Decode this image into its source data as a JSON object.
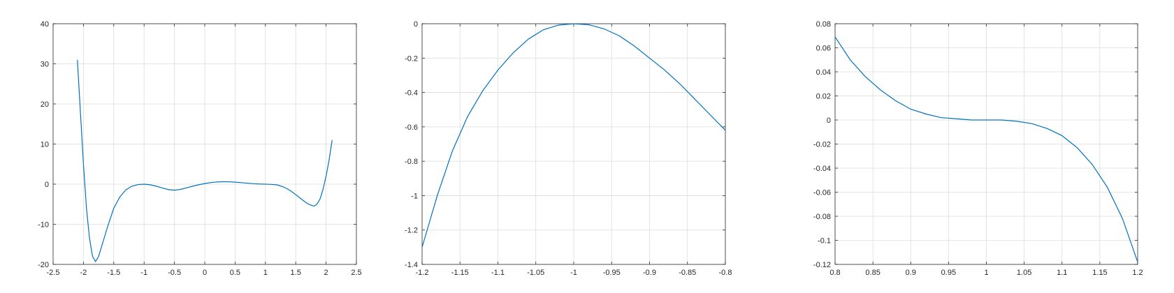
{
  "chart_data": [
    {
      "type": "line",
      "title": "",
      "xlabel": "",
      "ylabel": "",
      "xlim": [
        -2.5,
        2.5
      ],
      "ylim": [
        -20,
        40
      ],
      "grid": true,
      "xticks": [
        "-2.5",
        "-2",
        "-1.5",
        "-1",
        "-0.5",
        "0",
        "0.5",
        "1",
        "1.5",
        "2",
        "2.5"
      ],
      "yticks": [
        "-20",
        "-10",
        "0",
        "10",
        "20",
        "30",
        "40"
      ],
      "series": [
        {
          "color": "#0072bd",
          "x": [
            -2.1,
            -2.05,
            -2.0,
            -1.95,
            -1.9,
            -1.85,
            -1.8,
            -1.75,
            -1.7,
            -1.6,
            -1.5,
            -1.4,
            -1.3,
            -1.2,
            -1.1,
            -1.0,
            -0.9,
            -0.8,
            -0.7,
            -0.6,
            -0.5,
            -0.4,
            -0.3,
            -0.2,
            -0.1,
            0.0,
            0.1,
            0.2,
            0.3,
            0.4,
            0.5,
            0.6,
            0.7,
            0.8,
            0.9,
            1.0,
            1.1,
            1.2,
            1.3,
            1.4,
            1.5,
            1.6,
            1.7,
            1.75,
            1.8,
            1.85,
            1.9,
            1.95,
            2.0,
            2.05,
            2.1
          ],
          "y": [
            31.0,
            18.0,
            5.0,
            -6.0,
            -13.5,
            -18.0,
            -19.3,
            -18.0,
            -15.5,
            -10.5,
            -6.0,
            -3.2,
            -1.4,
            -0.5,
            -0.1,
            0.0,
            -0.15,
            -0.5,
            -0.95,
            -1.35,
            -1.5,
            -1.3,
            -0.9,
            -0.5,
            -0.15,
            0.15,
            0.4,
            0.55,
            0.62,
            0.6,
            0.5,
            0.38,
            0.25,
            0.12,
            0.04,
            0.0,
            -0.05,
            -0.2,
            -0.7,
            -1.5,
            -2.6,
            -3.8,
            -4.9,
            -5.2,
            -5.5,
            -5.0,
            -3.7,
            -1.3,
            2.0,
            6.0,
            11.0
          ]
        }
      ]
    },
    {
      "type": "line",
      "title": "",
      "xlabel": "",
      "ylabel": "",
      "xlim": [
        -1.2,
        -0.8
      ],
      "ylim": [
        -1.4,
        0
      ],
      "grid": true,
      "xticks": [
        "-1.2",
        "-1.15",
        "-1.1",
        "-1.05",
        "-1",
        "-0.95",
        "-0.9",
        "-0.85",
        "-0.8"
      ],
      "yticks": [
        "-1.4",
        "-1.2",
        "-1",
        "-0.8",
        "-0.6",
        "-0.4",
        "-0.2",
        "0"
      ],
      "series": [
        {
          "color": "#0072bd",
          "x": [
            -1.2,
            -1.18,
            -1.16,
            -1.14,
            -1.12,
            -1.1,
            -1.08,
            -1.06,
            -1.04,
            -1.02,
            -1.0,
            -0.98,
            -0.96,
            -0.94,
            -0.92,
            -0.9,
            -0.88,
            -0.86,
            -0.84,
            -0.82,
            -0.8
          ],
          "y": [
            -1.3,
            -1.0,
            -0.74,
            -0.54,
            -0.39,
            -0.27,
            -0.17,
            -0.09,
            -0.035,
            -0.008,
            0.0,
            -0.006,
            -0.03,
            -0.07,
            -0.13,
            -0.2,
            -0.27,
            -0.35,
            -0.44,
            -0.53,
            -0.62
          ]
        }
      ]
    },
    {
      "type": "line",
      "title": "",
      "xlabel": "",
      "ylabel": "",
      "xlim": [
        0.8,
        1.2
      ],
      "ylim": [
        -0.12,
        0.08
      ],
      "grid": true,
      "xticks": [
        "0.8",
        "0.85",
        "0.9",
        "0.95",
        "1",
        "1.05",
        "1.1",
        "1.15",
        "1.2"
      ],
      "yticks": [
        "-0.12",
        "-0.1",
        "-0.08",
        "-0.06",
        "-0.04",
        "-0.02",
        "0",
        "0.02",
        "0.04",
        "0.06",
        "0.08"
      ],
      "series": [
        {
          "color": "#0072bd",
          "x": [
            0.8,
            0.82,
            0.84,
            0.86,
            0.88,
            0.9,
            0.92,
            0.94,
            0.96,
            0.98,
            1.0,
            1.02,
            1.04,
            1.06,
            1.08,
            1.1,
            1.12,
            1.14,
            1.16,
            1.18,
            1.2
          ],
          "y": [
            0.069,
            0.05,
            0.036,
            0.025,
            0.016,
            0.009,
            0.005,
            0.002,
            0.001,
            0.0,
            0.0,
            0.0,
            -0.001,
            -0.003,
            -0.007,
            -0.013,
            -0.023,
            -0.037,
            -0.056,
            -0.082,
            -0.118
          ]
        }
      ]
    }
  ]
}
